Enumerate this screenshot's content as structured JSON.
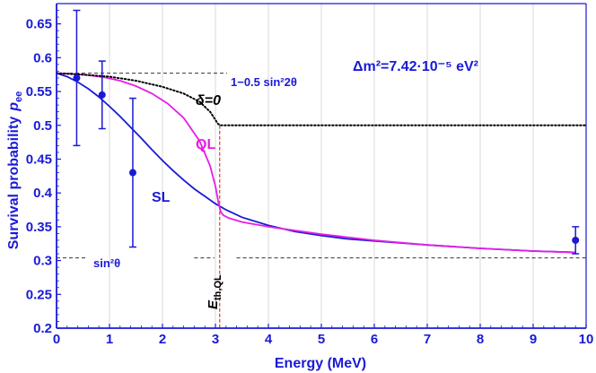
{
  "chart_data": {
    "type": "line",
    "xlabel": "Energy (MeV)",
    "ylabel": "Survival probability",
    "ylabel_sub": "ee",
    "ylabel_p": "p",
    "xlim": [
      0,
      10
    ],
    "ylim": [
      0.2,
      0.68
    ],
    "xticks": [
      0,
      1,
      2,
      3,
      4,
      5,
      6,
      7,
      8,
      9,
      10
    ],
    "yticks": [
      0.2,
      0.25,
      0.3,
      0.35,
      0.4,
      0.45,
      0.5,
      0.55,
      0.6,
      0.65
    ],
    "grid": "vertical",
    "colors": {
      "axis": "#1a1ad6",
      "sl": "#1a1ad6",
      "ql": "#e61ee6",
      "threshold": "#e8473a",
      "dotted": "#000000",
      "dashed": "#333333",
      "points": "#1a1ad6"
    },
    "series": [
      {
        "name": "SL",
        "color": "#1a1ad6",
        "x": [
          0,
          0.2,
          0.4,
          0.6,
          0.8,
          1.0,
          1.2,
          1.4,
          1.6,
          1.8,
          2.0,
          2.2,
          2.4,
          2.6,
          2.8,
          3.0,
          3.2,
          3.5,
          4.0,
          4.5,
          5.0,
          5.5,
          6.0,
          7.0,
          8.0,
          9.0,
          9.8
        ],
        "y": [
          0.577,
          0.572,
          0.564,
          0.554,
          0.542,
          0.528,
          0.513,
          0.497,
          0.481,
          0.464,
          0.448,
          0.433,
          0.419,
          0.406,
          0.395,
          0.384,
          0.375,
          0.364,
          0.352,
          0.343,
          0.337,
          0.332,
          0.329,
          0.323,
          0.318,
          0.314,
          0.312
        ]
      },
      {
        "name": "QL",
        "color": "#e61ee6",
        "x": [
          0,
          0.3,
          0.6,
          0.9,
          1.2,
          1.5,
          1.8,
          2.1,
          2.4,
          2.7,
          2.9,
          3.0,
          3.06,
          3.1,
          3.15,
          3.25,
          3.5,
          4.0,
          5.0,
          6.0,
          7.0,
          8.0,
          9.0,
          9.8
        ],
        "y": [
          0.577,
          0.576,
          0.574,
          0.571,
          0.566,
          0.558,
          0.547,
          0.532,
          0.511,
          0.477,
          0.44,
          0.41,
          0.385,
          0.372,
          0.367,
          0.363,
          0.357,
          0.35,
          0.339,
          0.33,
          0.323,
          0.318,
          0.314,
          0.312
        ]
      },
      {
        "name": "δ=0",
        "color": "#000000",
        "style": "dotted",
        "x": [
          0,
          0.5,
          1.0,
          1.5,
          2.0,
          2.4,
          2.7,
          2.9,
          3.0,
          3.05,
          3.1,
          10
        ],
        "y": [
          0.577,
          0.575,
          0.572,
          0.566,
          0.557,
          0.547,
          0.535,
          0.52,
          0.508,
          0.502,
          0.5,
          0.5
        ]
      }
    ],
    "points": [
      {
        "x": 0.38,
        "y": 0.57,
        "err_low": 0.47,
        "err_high": 0.67
      },
      {
        "x": 0.86,
        "y": 0.545,
        "err_low": 0.495,
        "err_high": 0.595
      },
      {
        "x": 1.44,
        "y": 0.43,
        "err_low": 0.32,
        "err_high": 0.54
      },
      {
        "x": 9.8,
        "y": 0.33,
        "err_low": 0.31,
        "err_high": 0.35
      }
    ],
    "reference_lines": [
      {
        "label": "1−0.5 sin²2θ",
        "y": 0.577
      },
      {
        "label": "sin²θ",
        "y": 0.304
      }
    ],
    "threshold": {
      "x": 3.08,
      "label": "E",
      "label_sub": "th,QL"
    },
    "annotations": {
      "dm2": "Δm²=7.42·10⁻⁵ eV²",
      "delta": "δ=0",
      "ql": "QL",
      "sl": "SL",
      "upper": "1−0.5 sin²2θ",
      "lower": "sin²θ"
    }
  }
}
